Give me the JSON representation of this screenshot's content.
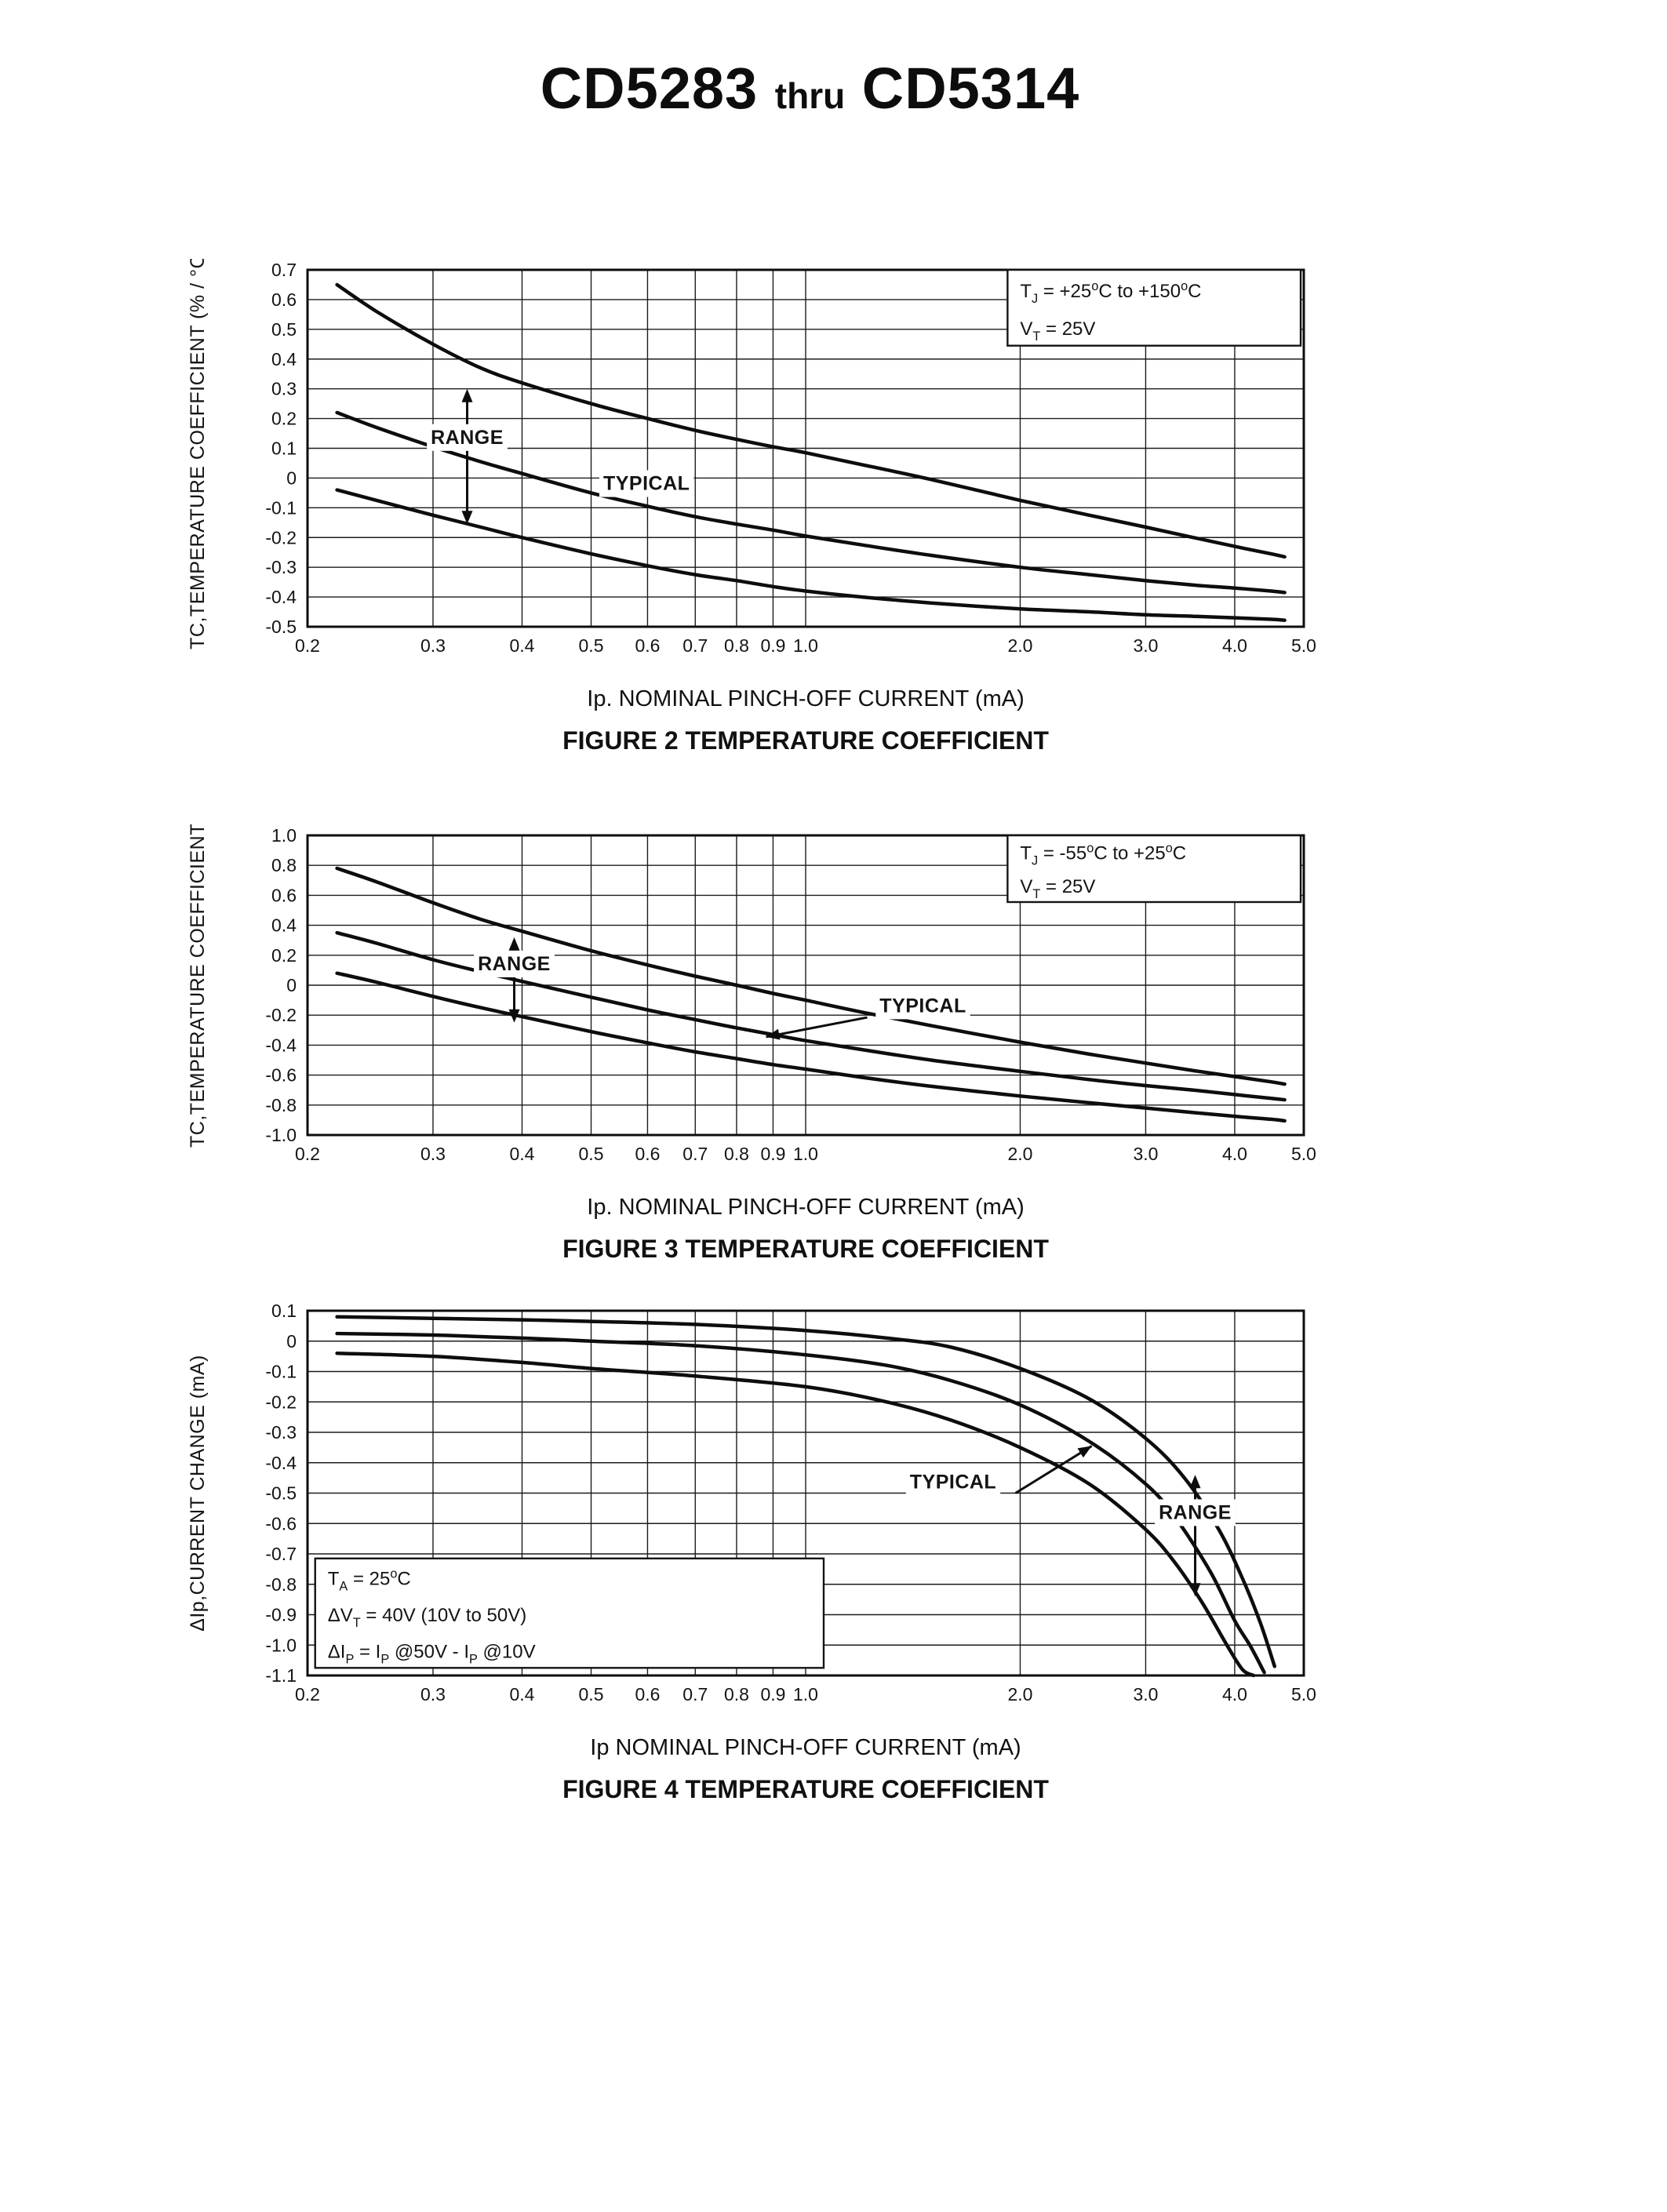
{
  "page": {
    "title_part1": "CD5283",
    "title_thru": "thru",
    "title_part2": "CD5314"
  },
  "colors": {
    "ink": "#111111",
    "paper": "#ffffff"
  },
  "chart_data": [
    {
      "name": "figure-2",
      "type": "line",
      "xscale": "log",
      "grid": true,
      "xlim": [
        0.2,
        5.0
      ],
      "ylim": [
        -0.5,
        0.7
      ],
      "xlabel": "Ip. NOMINAL PINCH-OFF CURRENT (mA)",
      "ylabel": "TC,TEMPERATURE COEFFICIENT (% / °C)",
      "caption": "FIGURE 2 TEMPERATURE COEFFICIENT",
      "xticks": [
        0.2,
        0.3,
        0.4,
        0.5,
        0.6,
        0.7,
        0.8,
        0.9,
        1.0,
        2.0,
        3.0,
        4.0,
        5.0
      ],
      "xtick_labels": [
        "0.2",
        "0.3",
        "0.4",
        "0.5",
        "0.6",
        "0.7",
        "0.8",
        "0.9",
        "1.0",
        "2.0",
        "3.0",
        "4.0",
        "5.0"
      ],
      "yticks": [
        0.7,
        0.6,
        0.5,
        0.4,
        0.3,
        0.2,
        0.1,
        0,
        -0.1,
        -0.2,
        -0.3,
        -0.4,
        -0.5
      ],
      "ytick_labels": [
        "0.7",
        "0.6",
        "0.5",
        "0.4",
        "0.3",
        "0.2",
        "0.1",
        "0",
        "-0.1",
        "-0.2",
        "-0.3",
        "-0.4",
        "-0.5"
      ],
      "series": [
        {
          "name": "range-max",
          "x": [
            0.22,
            0.25,
            0.3,
            0.35,
            0.4,
            0.5,
            0.6,
            0.7,
            0.8,
            0.9,
            1.0,
            1.2,
            1.5,
            2.0,
            2.5,
            3.0,
            3.5,
            4.0,
            4.5,
            4.7
          ],
          "y": [
            0.65,
            0.56,
            0.45,
            0.37,
            0.32,
            0.25,
            0.2,
            0.16,
            0.13,
            0.105,
            0.085,
            0.045,
            -0.005,
            -0.075,
            -0.125,
            -0.165,
            -0.2,
            -0.23,
            -0.255,
            -0.265
          ]
        },
        {
          "name": "typical",
          "x": [
            0.22,
            0.25,
            0.3,
            0.35,
            0.4,
            0.5,
            0.6,
            0.7,
            0.8,
            0.9,
            1.0,
            1.2,
            1.5,
            2.0,
            2.5,
            3.0,
            3.5,
            4.0,
            4.5,
            4.7
          ],
          "y": [
            0.22,
            0.17,
            0.105,
            0.055,
            0.015,
            -0.05,
            -0.095,
            -0.13,
            -0.155,
            -0.175,
            -0.195,
            -0.225,
            -0.26,
            -0.3,
            -0.325,
            -0.345,
            -0.36,
            -0.37,
            -0.38,
            -0.385
          ]
        },
        {
          "name": "range-min",
          "x": [
            0.22,
            0.25,
            0.3,
            0.35,
            0.4,
            0.5,
            0.6,
            0.7,
            0.8,
            0.9,
            1.0,
            1.2,
            1.5,
            2.0,
            2.5,
            3.0,
            3.5,
            4.0,
            4.5,
            4.7
          ],
          "y": [
            -0.04,
            -0.075,
            -0.125,
            -0.165,
            -0.2,
            -0.255,
            -0.295,
            -0.325,
            -0.345,
            -0.365,
            -0.38,
            -0.4,
            -0.42,
            -0.44,
            -0.45,
            -0.46,
            -0.465,
            -0.47,
            -0.475,
            -0.478
          ]
        }
      ],
      "annotations": [
        {
          "type": "varrow",
          "x": 0.335,
          "y1": 0.3,
          "y2": -0.155
        },
        {
          "type": "label",
          "x": 0.335,
          "y": 0.115,
          "text": "RANGE",
          "anchor": "middle",
          "bg": true
        },
        {
          "type": "label",
          "x": 0.52,
          "y": -0.04,
          "text": "TYPICAL",
          "anchor": "start",
          "bg": true
        },
        {
          "type": "legend",
          "x1": 1.92,
          "y1": 0.445,
          "x2": 4.95,
          "y2": 0.7,
          "lines": [
            "T_{J}   =   +25^{o}C  to  +150^{o}C",
            "V_{T}   =   25V"
          ]
        }
      ]
    },
    {
      "name": "figure-3",
      "type": "line",
      "xscale": "log",
      "grid": true,
      "xlim": [
        0.2,
        5.0
      ],
      "ylim": [
        -1.0,
        1.0
      ],
      "xlabel": "Ip. NOMINAL PINCH-OFF CURRENT (mA)",
      "ylabel": "TC,TEMPERATURE COEFFICIENT",
      "caption": "FIGURE 3 TEMPERATURE COEFFICIENT",
      "xticks": [
        0.2,
        0.3,
        0.4,
        0.5,
        0.6,
        0.7,
        0.8,
        0.9,
        1.0,
        2.0,
        3.0,
        4.0,
        5.0
      ],
      "xtick_labels": [
        "0.2",
        "0.3",
        "0.4",
        "0.5",
        "0.6",
        "0.7",
        "0.8",
        "0.9",
        "1.0",
        "2.0",
        "3.0",
        "4.0",
        "5.0"
      ],
      "yticks": [
        1.0,
        0.8,
        0.6,
        0.4,
        0.2,
        0,
        -0.2,
        -0.4,
        -0.6,
        -0.8,
        -1.0
      ],
      "ytick_labels": [
        "1.0",
        "0.8",
        "0.6",
        "0.4",
        "0.2",
        "0",
        "-0.2",
        "-0.4",
        "-0.6",
        "-0.8",
        "-1.0"
      ],
      "series": [
        {
          "name": "range-max",
          "x": [
            0.22,
            0.25,
            0.3,
            0.35,
            0.4,
            0.5,
            0.6,
            0.7,
            0.8,
            0.9,
            1.0,
            1.2,
            1.5,
            2.0,
            2.5,
            3.0,
            3.5,
            4.0,
            4.5,
            4.7
          ],
          "y": [
            0.78,
            0.69,
            0.55,
            0.44,
            0.36,
            0.23,
            0.135,
            0.06,
            0.0,
            -0.055,
            -0.1,
            -0.18,
            -0.27,
            -0.38,
            -0.46,
            -0.52,
            -0.57,
            -0.61,
            -0.645,
            -0.66
          ]
        },
        {
          "name": "typical",
          "x": [
            0.22,
            0.25,
            0.3,
            0.35,
            0.4,
            0.5,
            0.6,
            0.7,
            0.8,
            0.9,
            1.0,
            1.2,
            1.5,
            2.0,
            2.5,
            3.0,
            3.5,
            4.0,
            4.5,
            4.7
          ],
          "y": [
            0.35,
            0.28,
            0.17,
            0.09,
            0.025,
            -0.08,
            -0.165,
            -0.23,
            -0.285,
            -0.33,
            -0.37,
            -0.43,
            -0.5,
            -0.575,
            -0.63,
            -0.67,
            -0.7,
            -0.73,
            -0.755,
            -0.765
          ]
        },
        {
          "name": "range-min",
          "x": [
            0.22,
            0.25,
            0.3,
            0.35,
            0.4,
            0.5,
            0.6,
            0.7,
            0.8,
            0.9,
            1.0,
            1.2,
            1.5,
            2.0,
            2.5,
            3.0,
            3.5,
            4.0,
            4.5,
            4.7
          ],
          "y": [
            0.08,
            0.02,
            -0.075,
            -0.15,
            -0.21,
            -0.31,
            -0.385,
            -0.445,
            -0.49,
            -0.53,
            -0.56,
            -0.615,
            -0.675,
            -0.74,
            -0.785,
            -0.82,
            -0.85,
            -0.875,
            -0.895,
            -0.905
          ]
        }
      ],
      "annotations": [
        {
          "type": "varrow",
          "x": 0.39,
          "y1": 0.32,
          "y2": -0.25
        },
        {
          "type": "label",
          "x": 0.39,
          "y": 0.1,
          "text": "RANGE",
          "anchor": "middle",
          "bg": true
        },
        {
          "type": "leader",
          "x1": 1.22,
          "y1": -0.215,
          "x2": 0.88,
          "y2": -0.345
        },
        {
          "type": "label",
          "x": 1.27,
          "y": -0.18,
          "text": "TYPICAL",
          "anchor": "start",
          "bg": true
        },
        {
          "type": "legend",
          "x1": 1.92,
          "y1": 0.555,
          "x2": 4.95,
          "y2": 1.0,
          "lines": [
            "T_{J}   =   -55^{o}C  to  +25^{o}C",
            "V_{T}   =   25V"
          ]
        }
      ]
    },
    {
      "name": "figure-4",
      "type": "line",
      "xscale": "log",
      "grid": true,
      "xlim": [
        0.2,
        5.0
      ],
      "ylim": [
        -1.1,
        0.1
      ],
      "xlabel": "Ip NOMINAL PINCH-OFF CURRENT (mA)",
      "ylabel": "ΔIp,CURRENT CHANGE (mA)",
      "caption": "FIGURE 4 TEMPERATURE COEFFICIENT",
      "xticks": [
        0.2,
        0.3,
        0.4,
        0.5,
        0.6,
        0.7,
        0.8,
        0.9,
        1.0,
        2.0,
        3.0,
        4.0,
        5.0
      ],
      "xtick_labels": [
        "0.2",
        "0.3",
        "0.4",
        "0.5",
        "0.6",
        "0.7",
        "0.8",
        "0.9",
        "1.0",
        "2.0",
        "3.0",
        "4.0",
        "5.0"
      ],
      "yticks": [
        0.1,
        0,
        -0.1,
        -0.2,
        -0.3,
        -0.4,
        -0.5,
        -0.6,
        -0.7,
        -0.8,
        -0.9,
        -1.0,
        -1.1
      ],
      "ytick_labels": [
        "0.1",
        "0",
        "-0.1",
        "-0.2",
        "-0.3",
        "-0.4",
        "-0.5",
        "-0.6",
        "-0.7",
        "-0.8",
        "-0.9",
        "-1.0",
        "-1.1"
      ],
      "series": [
        {
          "name": "range-max",
          "x": [
            0.22,
            0.3,
            0.4,
            0.5,
            0.7,
            1.0,
            1.3,
            1.6,
            2.0,
            2.5,
            3.0,
            3.4,
            3.8,
            4.1,
            4.35,
            4.55
          ],
          "y": [
            0.08,
            0.075,
            0.07,
            0.065,
            0.055,
            0.035,
            0.01,
            -0.02,
            -0.09,
            -0.19,
            -0.32,
            -0.45,
            -0.62,
            -0.78,
            -0.93,
            -1.07
          ]
        },
        {
          "name": "typical",
          "x": [
            0.22,
            0.3,
            0.4,
            0.5,
            0.7,
            1.0,
            1.3,
            1.6,
            2.0,
            2.5,
            3.0,
            3.3,
            3.7,
            4.0,
            4.2,
            4.4
          ],
          "y": [
            0.025,
            0.02,
            0.01,
            0.0,
            -0.015,
            -0.045,
            -0.08,
            -0.13,
            -0.21,
            -0.33,
            -0.47,
            -0.58,
            -0.76,
            -0.92,
            -1.0,
            -1.09
          ]
        },
        {
          "name": "range-min",
          "x": [
            0.22,
            0.3,
            0.4,
            0.5,
            0.7,
            1.0,
            1.3,
            1.6,
            2.0,
            2.5,
            3.0,
            3.3,
            3.6,
            3.9,
            4.1,
            4.25
          ],
          "y": [
            -0.04,
            -0.05,
            -0.07,
            -0.09,
            -0.115,
            -0.15,
            -0.2,
            -0.26,
            -0.35,
            -0.47,
            -0.62,
            -0.73,
            -0.86,
            -1.0,
            -1.08,
            -1.1
          ]
        }
      ],
      "annotations": [
        {
          "type": "leader",
          "x1": 1.97,
          "y1": -0.5,
          "x2": 2.52,
          "y2": -0.345
        },
        {
          "type": "label",
          "x": 1.4,
          "y": -0.485,
          "text": "TYPICAL",
          "anchor": "start",
          "bg": true
        },
        {
          "type": "varrow",
          "x": 3.52,
          "y1": -0.44,
          "y2": -0.84
        },
        {
          "type": "label",
          "x": 3.52,
          "y": -0.585,
          "text": "RANGE",
          "anchor": "middle",
          "bg": true
        },
        {
          "type": "legend",
          "x1": 0.205,
          "y1": -1.075,
          "x2": 1.06,
          "y2": -0.715,
          "lines": [
            "T_{A}  =  25^{o}C",
            "ΔV_{T}  =  40V (10V to 50V)",
            "ΔI_{P}  =  I_{P} @50V - I_{P} @10V"
          ]
        }
      ]
    }
  ]
}
